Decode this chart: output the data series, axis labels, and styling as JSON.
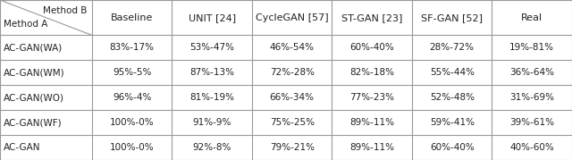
{
  "col_headers": [
    "Baseline",
    "UNIT [24]",
    "CycleGAN [57]",
    "ST-GAN [23]",
    "SF-GAN [52]",
    "Real"
  ],
  "row_headers": [
    "AC-GAN(WA)",
    "AC-GAN(WM)",
    "AC-GAN(WO)",
    "AC-GAN(WF)",
    "AC-GAN"
  ],
  "cells": [
    [
      "83%-17%",
      "53%-47%",
      "46%-54%",
      "60%-40%",
      "28%-72%",
      "19%-81%"
    ],
    [
      "95%-5%",
      "87%-13%",
      "72%-28%",
      "82%-18%",
      "55%-44%",
      "36%-64%"
    ],
    [
      "96%-4%",
      "81%-19%",
      "66%-34%",
      "77%-23%",
      "52%-48%",
      "31%-69%"
    ],
    [
      "100%-0%",
      "91%-9%",
      "75%-25%",
      "89%-11%",
      "59%-41%",
      "39%-61%"
    ],
    [
      "100%-0%",
      "92%-8%",
      "79%-21%",
      "89%-11%",
      "60%-40%",
      "40%-60%"
    ]
  ],
  "top_label": "Method B",
  "left_label": "Method A",
  "bg_color": "#ffffff",
  "line_color": "#999999",
  "text_color": "#222222",
  "font_size": 7.5,
  "header_font_size": 8.0,
  "figsize": [
    6.4,
    1.79
  ],
  "dpi": 100
}
